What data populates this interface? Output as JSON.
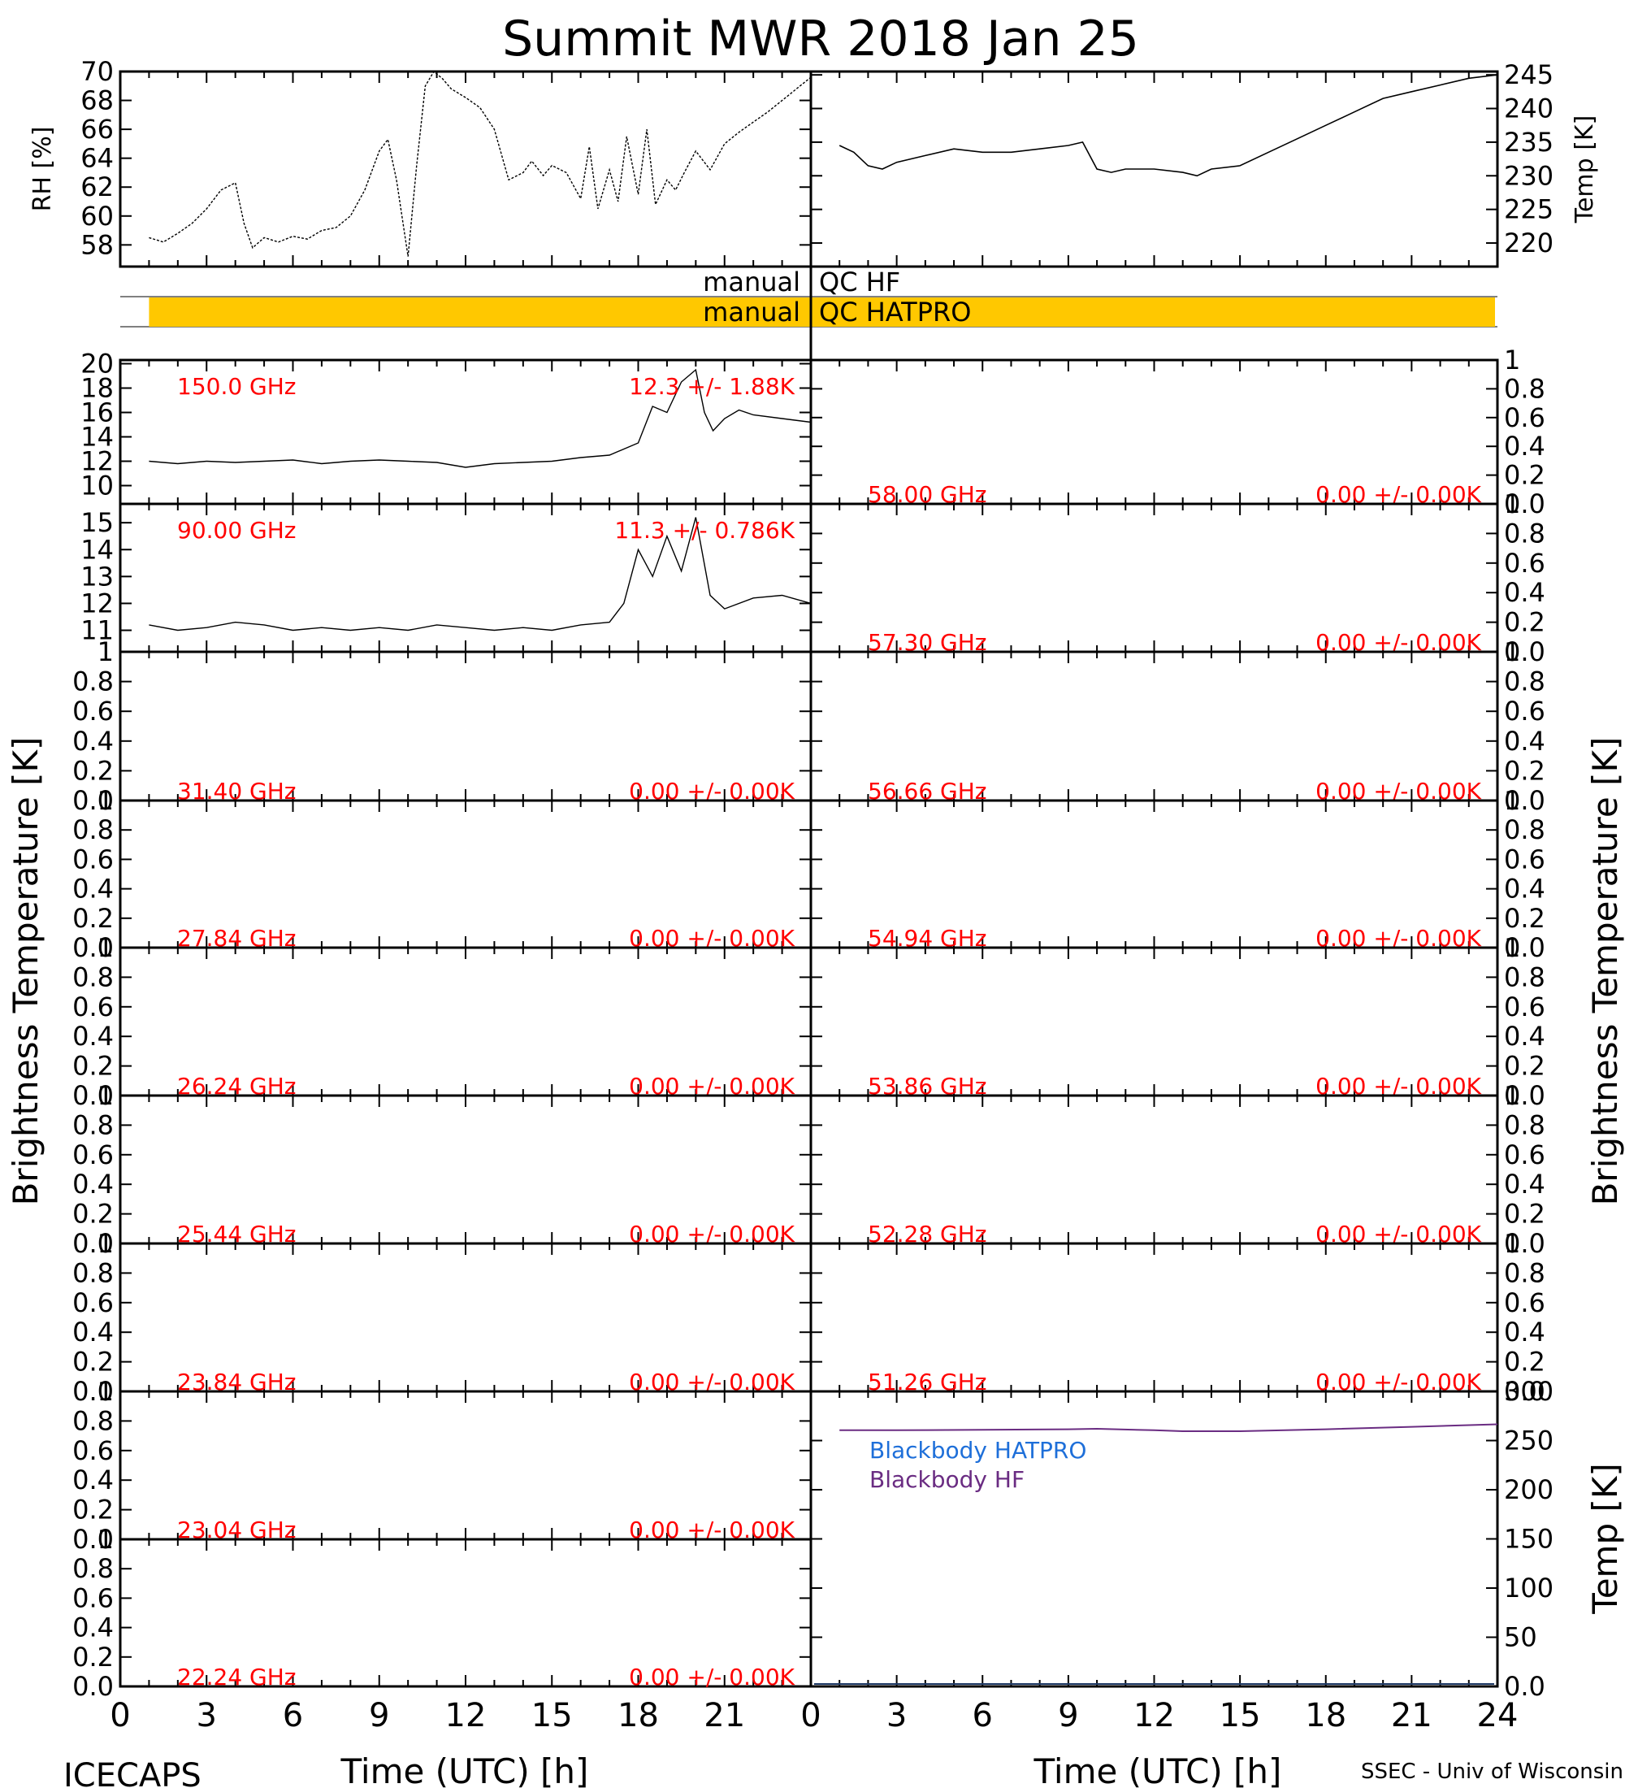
{
  "title": "Summit MWR 2018 Jan 25",
  "footer": {
    "left": "ICECAPS",
    "right": "SSEC - Univ of Wisconsin"
  },
  "left_ylabel": "Brightness Temperature [K]",
  "right_ylabel": "Brightness Temperature [K]",
  "xlabel": "Time (UTC) [h]",
  "colors": {
    "annotation": "#ff0000",
    "qc_bar": "#ffc800",
    "hatpro": "#1e6fd9",
    "hf": "#6a2c82",
    "data": "#000000"
  },
  "qc": {
    "hf": {
      "left": "manual",
      "right": "QC HF"
    },
    "hatpro": {
      "left": "manual",
      "right": "QC HATPRO",
      "flag_range_h": [
        1,
        24
      ]
    }
  },
  "chart_data": [
    {
      "id": "rh",
      "type": "line",
      "ylabel": "RH [%]",
      "xlim": [
        0,
        24
      ],
      "ylim": [
        56.5,
        70
      ],
      "yticks": [
        58,
        60,
        62,
        64,
        66,
        68,
        70
      ],
      "x": [
        1,
        1.5,
        2,
        2.5,
        3,
        3.5,
        4,
        4.3,
        4.6,
        5,
        5.5,
        6,
        6.5,
        7,
        7.5,
        8,
        8.5,
        9,
        9.3,
        9.6,
        10,
        10.3,
        10.6,
        10.9,
        11.2,
        11.5,
        12,
        12.5,
        13,
        13.5,
        14,
        14.3,
        14.7,
        15,
        15.5,
        16,
        16.3,
        16.6,
        17,
        17.3,
        17.6,
        18,
        18.3,
        18.6,
        19,
        19.3,
        19.6,
        20,
        20.5,
        21,
        21.5,
        22,
        22.5,
        23,
        23.5,
        24
      ],
      "y": [
        58.5,
        58.2,
        58.8,
        59.5,
        60.5,
        61.8,
        62.3,
        59.5,
        57.8,
        58.5,
        58.2,
        58.6,
        58.4,
        59.0,
        59.2,
        60.0,
        61.8,
        64.5,
        65.3,
        62.5,
        57.2,
        63.5,
        69.0,
        70.0,
        69.5,
        68.8,
        68.2,
        67.5,
        66.0,
        62.5,
        63.0,
        63.8,
        62.8,
        63.5,
        63.0,
        61.2,
        64.8,
        60.5,
        63.2,
        61.0,
        65.5,
        61.5,
        66.0,
        60.8,
        62.5,
        61.8,
        63.0,
        64.5,
        63.2,
        65.0,
        65.8,
        66.5,
        67.2,
        68.0,
        68.8,
        69.6
      ]
    },
    {
      "id": "temp",
      "type": "line",
      "ylabel": "Temp [K]",
      "xlim": [
        0,
        24
      ],
      "ylim": [
        216.5,
        245.5
      ],
      "yticks": [
        220,
        225,
        230,
        235,
        240,
        245
      ],
      "x": [
        1,
        1.5,
        2,
        2.5,
        3,
        4,
        5,
        6,
        7,
        8,
        9,
        9.5,
        10,
        10.5,
        11,
        12,
        13,
        13.5,
        14,
        15,
        16,
        17,
        18,
        19,
        20,
        21,
        22,
        23,
        24
      ],
      "y": [
        234.5,
        233.5,
        231.5,
        231.0,
        232.0,
        233.0,
        234.0,
        233.5,
        233.5,
        234.0,
        234.5,
        235.0,
        231.0,
        230.5,
        231.0,
        231.0,
        230.5,
        230.0,
        231.0,
        231.5,
        233.5,
        235.5,
        237.5,
        239.5,
        241.5,
        242.5,
        243.5,
        244.5,
        245.0
      ]
    },
    {
      "id": "left0",
      "type": "line",
      "label": "150.0 GHz",
      "stats": "12.3 +/- 1.88K",
      "xlim": [
        0,
        24
      ],
      "ylim": [
        8.5,
        20.3
      ],
      "yticks": [
        10,
        12,
        14,
        16,
        18,
        20
      ],
      "x": [
        1,
        2,
        3,
        4,
        5,
        6,
        7,
        8,
        9,
        10,
        11,
        12,
        13,
        14,
        15,
        16,
        17,
        18,
        18.5,
        19,
        19.5,
        20,
        20.3,
        20.6,
        21,
        21.5,
        22,
        23,
        24
      ],
      "y": [
        12,
        11.8,
        12,
        11.9,
        12,
        12.1,
        11.8,
        12,
        12.1,
        12,
        11.9,
        11.5,
        11.8,
        11.9,
        12,
        12.3,
        12.5,
        13.5,
        16.5,
        16.0,
        18.5,
        19.5,
        16.0,
        14.5,
        15.5,
        16.2,
        15.8,
        15.5,
        15.2
      ]
    },
    {
      "id": "left1",
      "type": "line",
      "label": "90.00 GHz",
      "stats": "11.3 +/- 0.786K",
      "xlim": [
        0,
        24
      ],
      "ylim": [
        10.2,
        15.7
      ],
      "yticks": [
        11,
        12,
        13,
        14,
        15
      ],
      "x": [
        1,
        2,
        3,
        4,
        5,
        6,
        7,
        8,
        9,
        10,
        11,
        12,
        13,
        14,
        15,
        16,
        17,
        17.5,
        18,
        18.5,
        19,
        19.5,
        20,
        20.5,
        21,
        22,
        23,
        24
      ],
      "y": [
        11.2,
        11.0,
        11.1,
        11.3,
        11.2,
        11.0,
        11.1,
        11.0,
        11.1,
        11.0,
        11.2,
        11.1,
        11.0,
        11.1,
        11.0,
        11.2,
        11.3,
        12.0,
        14.0,
        13.0,
        14.5,
        13.2,
        15.2,
        12.3,
        11.8,
        12.2,
        12.3,
        12.0
      ]
    },
    {
      "id": "left2",
      "type": "line",
      "label": "31.40 GHz",
      "stats": "0.00 +/- 0.00K",
      "xlim": [
        0,
        24
      ],
      "ylim": [
        0,
        1
      ],
      "yticks": [
        0,
        0.2,
        0.4,
        0.6,
        0.8,
        1.0
      ]
    },
    {
      "id": "left3",
      "type": "line",
      "label": "27.84 GHz",
      "stats": "0.00 +/- 0.00K",
      "xlim": [
        0,
        24
      ],
      "ylim": [
        0,
        1
      ],
      "yticks": [
        0,
        0.2,
        0.4,
        0.6,
        0.8,
        1.0
      ]
    },
    {
      "id": "left4",
      "type": "line",
      "label": "26.24 GHz",
      "stats": "0.00 +/- 0.00K",
      "xlim": [
        0,
        24
      ],
      "ylim": [
        0,
        1
      ],
      "yticks": [
        0,
        0.2,
        0.4,
        0.6,
        0.8,
        1.0
      ]
    },
    {
      "id": "left5",
      "type": "line",
      "label": "25.44 GHz",
      "stats": "0.00 +/- 0.00K",
      "xlim": [
        0,
        24
      ],
      "ylim": [
        0,
        1
      ],
      "yticks": [
        0,
        0.2,
        0.4,
        0.6,
        0.8,
        1.0
      ]
    },
    {
      "id": "left6",
      "type": "line",
      "label": "23.84 GHz",
      "stats": "0.00 +/- 0.00K",
      "xlim": [
        0,
        24
      ],
      "ylim": [
        0,
        1
      ],
      "yticks": [
        0,
        0.2,
        0.4,
        0.6,
        0.8,
        1.0
      ]
    },
    {
      "id": "left7",
      "type": "line",
      "label": "23.04 GHz",
      "stats": "0.00 +/- 0.00K",
      "xlim": [
        0,
        24
      ],
      "ylim": [
        0,
        1
      ],
      "yticks": [
        0,
        0.2,
        0.4,
        0.6,
        0.8,
        1.0
      ]
    },
    {
      "id": "left8",
      "type": "line",
      "label": "22.24 GHz",
      "stats": "0.00 +/- 0.00K",
      "xlim": [
        0,
        24
      ],
      "ylim": [
        0,
        1
      ],
      "yticks": [
        0,
        0.2,
        0.4,
        0.6,
        0.8,
        1.0
      ]
    },
    {
      "id": "right0",
      "type": "line",
      "label": "58.00 GHz",
      "stats": "0.00 +/- 0.00K",
      "xlim": [
        0,
        24
      ],
      "ylim": [
        0,
        1
      ],
      "yticks": [
        0,
        0.2,
        0.4,
        0.6,
        0.8,
        1.0
      ]
    },
    {
      "id": "right1",
      "type": "line",
      "label": "57.30 GHz",
      "stats": "0.00 +/- 0.00K",
      "xlim": [
        0,
        24
      ],
      "ylim": [
        0,
        1
      ],
      "yticks": [
        0,
        0.2,
        0.4,
        0.6,
        0.8,
        1.0
      ]
    },
    {
      "id": "right2",
      "type": "line",
      "label": "56.66 GHz",
      "stats": "0.00 +/- 0.00K",
      "xlim": [
        0,
        24
      ],
      "ylim": [
        0,
        1
      ],
      "yticks": [
        0,
        0.2,
        0.4,
        0.6,
        0.8,
        1.0
      ]
    },
    {
      "id": "right3",
      "type": "line",
      "label": "54.94 GHz",
      "stats": "0.00 +/- 0.00K",
      "xlim": [
        0,
        24
      ],
      "ylim": [
        0,
        1
      ],
      "yticks": [
        0,
        0.2,
        0.4,
        0.6,
        0.8,
        1.0
      ]
    },
    {
      "id": "right4",
      "type": "line",
      "label": "53.86 GHz",
      "stats": "0.00 +/- 0.00K",
      "xlim": [
        0,
        24
      ],
      "ylim": [
        0,
        1
      ],
      "yticks": [
        0,
        0.2,
        0.4,
        0.6,
        0.8,
        1.0
      ]
    },
    {
      "id": "right5",
      "type": "line",
      "label": "52.28 GHz",
      "stats": "0.00 +/- 0.00K",
      "xlim": [
        0,
        24
      ],
      "ylim": [
        0,
        1
      ],
      "yticks": [
        0,
        0.2,
        0.4,
        0.6,
        0.8,
        1.0
      ]
    },
    {
      "id": "right6",
      "type": "line",
      "label": "51.26 GHz",
      "stats": "0.00 +/- 0.00K",
      "xlim": [
        0,
        24
      ],
      "ylim": [
        0,
        1
      ],
      "yticks": [
        0,
        0.2,
        0.4,
        0.6,
        0.8,
        1.0
      ]
    },
    {
      "id": "blackbody",
      "type": "line",
      "ylabel": "Temp [K]",
      "xlim": [
        0,
        24
      ],
      "ylim": [
        0,
        300
      ],
      "yticks": [
        0,
        50,
        100,
        150,
        200,
        250,
        300
      ],
      "series": [
        {
          "name": "Blackbody HATPRO",
          "x": [],
          "y": []
        },
        {
          "name": "Blackbody HF",
          "x": [
            1,
            3,
            6,
            9,
            10,
            12,
            13,
            15,
            18,
            21,
            24
          ],
          "y": [
            260.5,
            260.5,
            261,
            261.5,
            262,
            260.5,
            259.5,
            259.5,
            261.5,
            264,
            266.5
          ]
        }
      ]
    }
  ],
  "x_tick_labels_left": [
    "0",
    "3",
    "6",
    "9",
    "12",
    "15",
    "18",
    "21"
  ],
  "x_tick_labels_right": [
    "0",
    "3",
    "6",
    "9",
    "12",
    "15",
    "18",
    "21",
    "24"
  ]
}
